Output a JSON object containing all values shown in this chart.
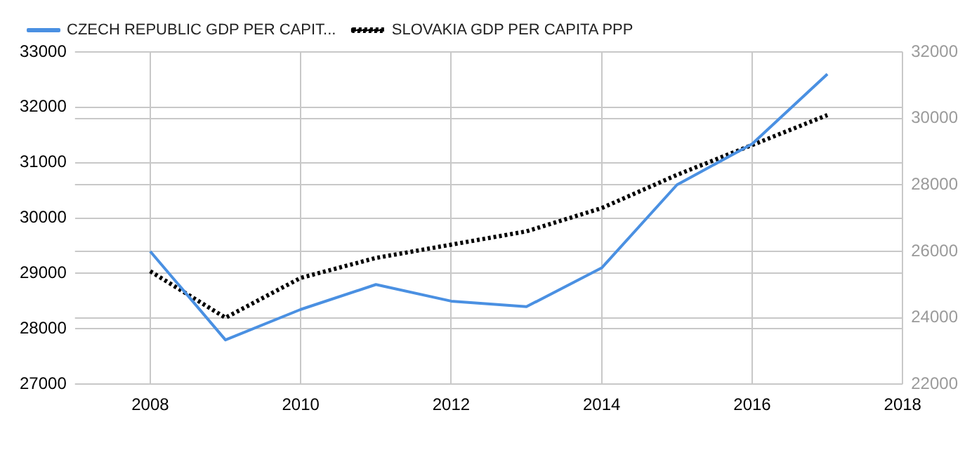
{
  "chart_data": {
    "type": "line",
    "x": [
      2008,
      2009,
      2010,
      2011,
      2012,
      2013,
      2014,
      2015,
      2016,
      2017
    ],
    "series": [
      {
        "name": "CZECH REPUBLIC GDP PER CAPIT...",
        "color": "#4a90e2",
        "line_style": "solid",
        "values": [
          29400,
          27800,
          28350,
          28800,
          28500,
          28400,
          29100,
          30600,
          31340,
          32600
        ]
      },
      {
        "name": "SLOVAKIA GDP PER CAPITA PPP",
        "color": "#000000",
        "line_style": "dotted",
        "axis": "y2",
        "values": [
          25400,
          24000,
          25200,
          25800,
          26200,
          26600,
          27300,
          28300,
          29200,
          30100
        ]
      }
    ],
    "xlim": [
      2007,
      2018
    ],
    "xticks": [
      2008,
      2010,
      2012,
      2014,
      2016,
      2018
    ],
    "ylim": [
      27000,
      33000
    ],
    "yticks": [
      27000,
      28000,
      29000,
      30000,
      31000,
      32000,
      33000
    ],
    "y2lim": [
      22000,
      32000
    ],
    "y2ticks": [
      22000,
      24000,
      26000,
      28000,
      30000,
      32000
    ],
    "grid": true,
    "legend": "top left",
    "marker": "none"
  }
}
